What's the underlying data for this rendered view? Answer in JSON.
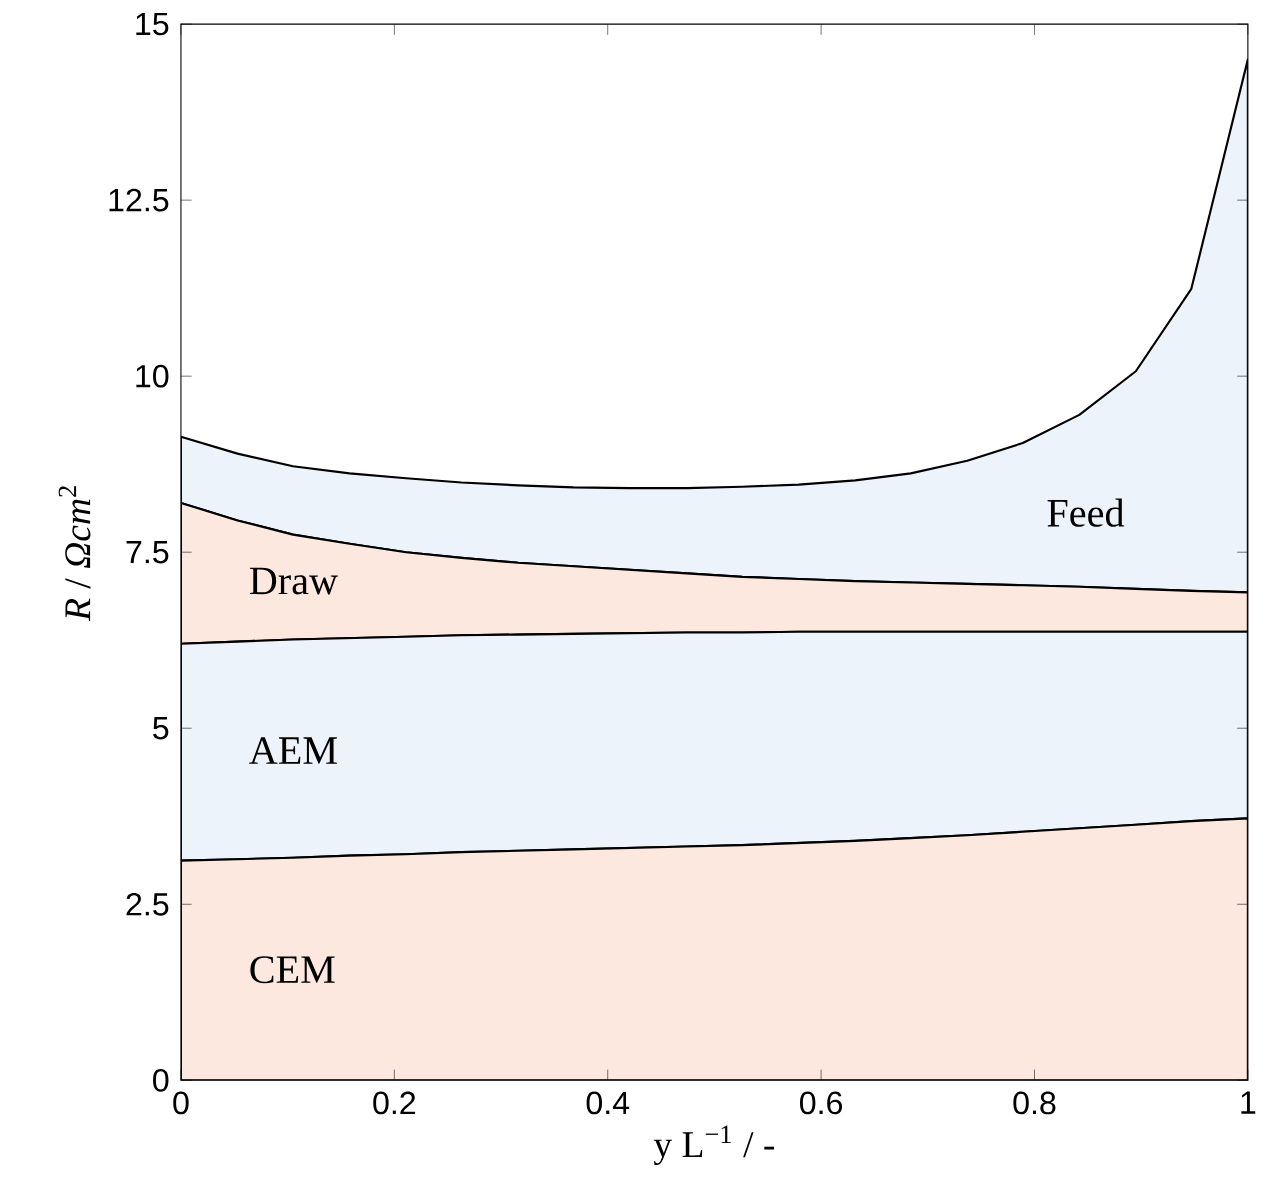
{
  "chart_data": {
    "type": "area",
    "stacked": true,
    "xlabel": "y L$^{−1}$ / -",
    "ylabel": "*R* / *Ωcm*$^{2}$",
    "x": [
      0,
      0.053,
      0.105,
      0.158,
      0.211,
      0.263,
      0.316,
      0.368,
      0.421,
      0.474,
      0.526,
      0.579,
      0.632,
      0.684,
      0.737,
      0.789,
      0.842,
      0.895,
      0.947,
      1
    ],
    "xlim": [
      0,
      1
    ],
    "xticks": [
      0,
      0.2,
      0.4,
      0.6,
      0.8,
      1
    ],
    "ylim": [
      0,
      15
    ],
    "yticks": [
      0,
      2.5,
      5,
      7.5,
      10,
      12.5,
      15
    ],
    "series": [
      {
        "name": "CEM",
        "color": "#fce8de",
        "values": [
          3.12,
          3.14,
          3.16,
          3.19,
          3.21,
          3.24,
          3.26,
          3.28,
          3.3,
          3.32,
          3.34,
          3.37,
          3.4,
          3.44,
          3.48,
          3.53,
          3.58,
          3.63,
          3.68,
          3.72
        ]
      },
      {
        "name": "AEM",
        "color": "#edf3fb",
        "values": [
          3.08,
          3.09,
          3.1,
          3.09,
          3.09,
          3.08,
          3.07,
          3.06,
          3.05,
          3.04,
          3.02,
          3.0,
          2.97,
          2.93,
          2.89,
          2.84,
          2.79,
          2.74,
          2.69,
          2.65
        ]
      },
      {
        "name": "Draw",
        "color": "#fce8de",
        "values": [
          2.0,
          1.72,
          1.49,
          1.34,
          1.2,
          1.1,
          1.02,
          0.96,
          0.9,
          0.84,
          0.79,
          0.75,
          0.72,
          0.7,
          0.68,
          0.66,
          0.64,
          0.61,
          0.58,
          0.56
        ]
      },
      {
        "name": "Feed",
        "color": "#edf3fb",
        "values": [
          0.94,
          0.95,
          0.97,
          1.0,
          1.05,
          1.07,
          1.1,
          1.12,
          1.16,
          1.21,
          1.28,
          1.34,
          1.43,
          1.55,
          1.75,
          2.02,
          2.44,
          3.09,
          4.29,
          7.57
        ]
      }
    ]
  }
}
